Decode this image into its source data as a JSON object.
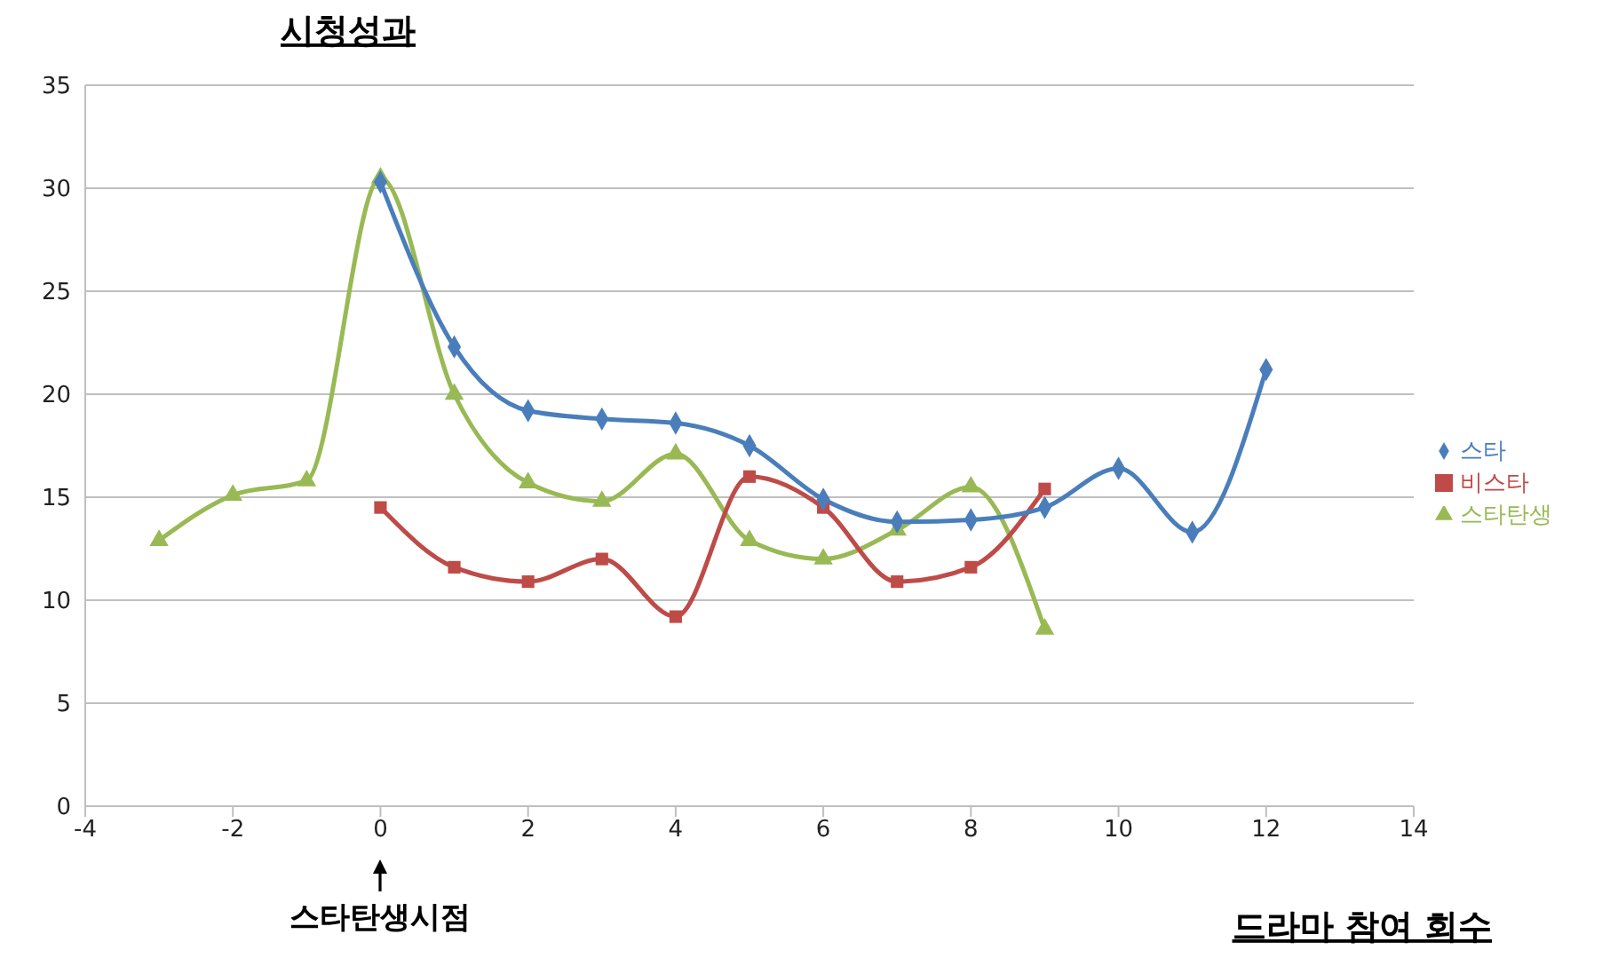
{
  "chart_data": {
    "type": "line",
    "ylabel": "시청성과",
    "xlabel": "드라마 참여 회수",
    "annotations": [
      "스타탄생시점"
    ],
    "xlim": [
      -4,
      14
    ],
    "xticks": [
      -4,
      -2,
      0,
      2,
      4,
      6,
      8,
      10,
      12,
      14
    ],
    "ylim": [
      0,
      35
    ],
    "yticks": [
      0,
      5,
      10,
      15,
      20,
      25,
      30,
      35
    ],
    "grid": "y",
    "legend": "right",
    "line_style": "solid",
    "series": [
      {
        "name": "스타",
        "color": "#4a7ebb",
        "marker": "diamond",
        "x": [
          0,
          1,
          2,
          3,
          4,
          5,
          6,
          7,
          8,
          9,
          10,
          11,
          12
        ],
        "values": [
          30.3,
          22.3,
          19.2,
          18.8,
          18.6,
          17.5,
          14.9,
          13.8,
          13.9,
          14.5,
          16.4,
          13.3,
          21.2
        ]
      },
      {
        "name": "비스타",
        "color": "#be4b48",
        "marker": "square",
        "x": [
          0,
          1,
          2,
          3,
          4,
          5,
          6,
          7,
          8,
          9
        ],
        "values": [
          14.5,
          11.6,
          10.9,
          12.0,
          9.2,
          16.0,
          14.5,
          10.9,
          11.6,
          15.4
        ]
      },
      {
        "name": "스타탄생",
        "color": "#98b954",
        "marker": "triangle",
        "x": [
          -3,
          -2,
          -1,
          0,
          1,
          2,
          3,
          4,
          5,
          6,
          7,
          8,
          9
        ],
        "values": [
          12.9,
          15.1,
          15.8,
          30.5,
          20.0,
          15.7,
          14.8,
          17.1,
          12.9,
          12.0,
          13.4,
          15.5,
          8.6
        ]
      }
    ]
  }
}
